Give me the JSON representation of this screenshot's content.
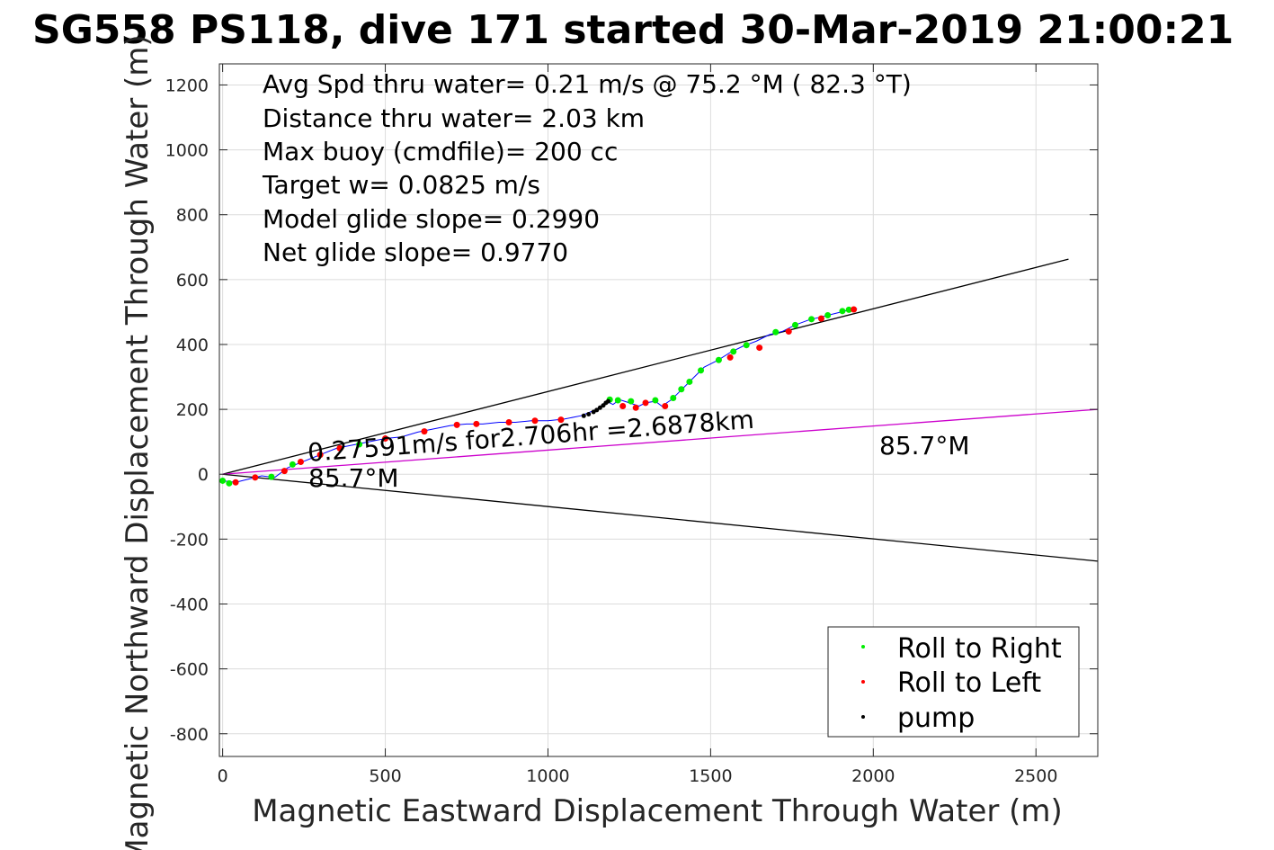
{
  "chart_data": {
    "type": "line",
    "title": "SG558 PS118, dive 171 started 30-Mar-2019 21:00:21",
    "xlabel": "Magnetic Eastward Displacement Through Water (m)",
    "ylabel": "Magnetic Northward Displacement Through Water (m)",
    "xlim": [
      -10,
      2690
    ],
    "ylim": [
      -870,
      1265
    ],
    "xticks": [
      0,
      500,
      1000,
      1500,
      2000,
      2500
    ],
    "yticks": [
      -800,
      -600,
      -400,
      -200,
      0,
      200,
      400,
      600,
      800,
      1000,
      1200
    ],
    "grid": true,
    "info_lines": [
      "Avg Spd thru water=  0.21 m/s @  75.2 °M ( 82.3 °T)",
      "Distance thru water=  2.03 km",
      "Max buoy (cmdfile)= 200 cc",
      "Target w= 0.0825 m/s",
      "Model glide slope= 0.2990",
      "Net glide slope= 0.9770"
    ],
    "annotations": {
      "speed_label": "0.27591m/s for2.706hr =2.6878km",
      "heading_label_left": "85.7°M",
      "heading_label_right": "85.7°M"
    },
    "reference_lines": [
      {
        "name": "",
        "x": [
          0,
          2600
        ],
        "y": [
          0,
          663
        ],
        "color": "#000000"
      },
      {
        "name": "",
        "x": [
          0,
          2690
        ],
        "y": [
          0,
          -268
        ],
        "color": "#000000"
      },
      {
        "name": "",
        "x": [
          0,
          2690
        ],
        "y": [
          0,
          200
        ],
        "color": "#cc00cc"
      }
    ],
    "track": [
      [
        0,
        -20
      ],
      [
        40,
        -25
      ],
      [
        80,
        -15
      ],
      [
        120,
        -5
      ],
      [
        160,
        -10
      ],
      [
        200,
        20
      ],
      [
        250,
        40
      ],
      [
        300,
        60
      ],
      [
        350,
        80
      ],
      [
        400,
        90
      ],
      [
        450,
        100
      ],
      [
        500,
        110
      ],
      [
        550,
        115
      ],
      [
        600,
        130
      ],
      [
        650,
        140
      ],
      [
        700,
        150
      ],
      [
        750,
        155
      ],
      [
        800,
        155
      ],
      [
        850,
        160
      ],
      [
        900,
        160
      ],
      [
        950,
        165
      ],
      [
        1000,
        165
      ],
      [
        1050,
        170
      ],
      [
        1100,
        180
      ],
      [
        1150,
        200
      ],
      [
        1180,
        225
      ],
      [
        1200,
        215
      ],
      [
        1220,
        230
      ],
      [
        1250,
        220
      ],
      [
        1280,
        210
      ],
      [
        1300,
        220
      ],
      [
        1330,
        225
      ],
      [
        1350,
        210
      ],
      [
        1380,
        230
      ],
      [
        1400,
        250
      ],
      [
        1420,
        270
      ],
      [
        1450,
        300
      ],
      [
        1480,
        330
      ],
      [
        1520,
        350
      ],
      [
        1560,
        375
      ],
      [
        1600,
        395
      ],
      [
        1640,
        410
      ],
      [
        1680,
        430
      ],
      [
        1720,
        440
      ],
      [
        1760,
        460
      ],
      [
        1800,
        475
      ],
      [
        1840,
        485
      ],
      [
        1880,
        495
      ],
      [
        1920,
        505
      ],
      [
        1950,
        510
      ]
    ],
    "series": [
      {
        "name": "Roll to Right",
        "color": "#00ee00",
        "values": [
          [
            0,
            -20
          ],
          [
            20,
            -28
          ],
          [
            150,
            -8
          ],
          [
            215,
            30
          ],
          [
            420,
            92
          ],
          [
            1190,
            230
          ],
          [
            1215,
            228
          ],
          [
            1255,
            225
          ],
          [
            1330,
            228
          ],
          [
            1385,
            235
          ],
          [
            1410,
            262
          ],
          [
            1435,
            285
          ],
          [
            1470,
            320
          ],
          [
            1525,
            352
          ],
          [
            1570,
            378
          ],
          [
            1610,
            398
          ],
          [
            1700,
            438
          ],
          [
            1760,
            460
          ],
          [
            1810,
            478
          ],
          [
            1860,
            490
          ],
          [
            1905,
            503
          ],
          [
            1925,
            507
          ]
        ]
      },
      {
        "name": "Roll to Left",
        "color": "#ff0000",
        "values": [
          [
            40,
            -25
          ],
          [
            100,
            -10
          ],
          [
            190,
            10
          ],
          [
            240,
            38
          ],
          [
            300,
            60
          ],
          [
            360,
            80
          ],
          [
            500,
            110
          ],
          [
            620,
            132
          ],
          [
            720,
            152
          ],
          [
            780,
            155
          ],
          [
            880,
            160
          ],
          [
            960,
            165
          ],
          [
            1040,
            168
          ],
          [
            1230,
            210
          ],
          [
            1270,
            205
          ],
          [
            1300,
            220
          ],
          [
            1360,
            210
          ],
          [
            1560,
            360
          ],
          [
            1650,
            390
          ],
          [
            1740,
            440
          ],
          [
            1840,
            480
          ],
          [
            1940,
            508
          ]
        ]
      },
      {
        "name": "pump",
        "color": "#000000",
        "values": [
          [
            1110,
            180
          ],
          [
            1125,
            185
          ],
          [
            1140,
            192
          ],
          [
            1150,
            198
          ],
          [
            1160,
            205
          ],
          [
            1170,
            212
          ],
          [
            1178,
            220
          ],
          [
            1185,
            225
          ]
        ]
      }
    ],
    "legend": {
      "placement": "bottom-right",
      "entries": [
        "Roll to Right",
        "Roll to Left",
        "pump"
      ]
    }
  }
}
